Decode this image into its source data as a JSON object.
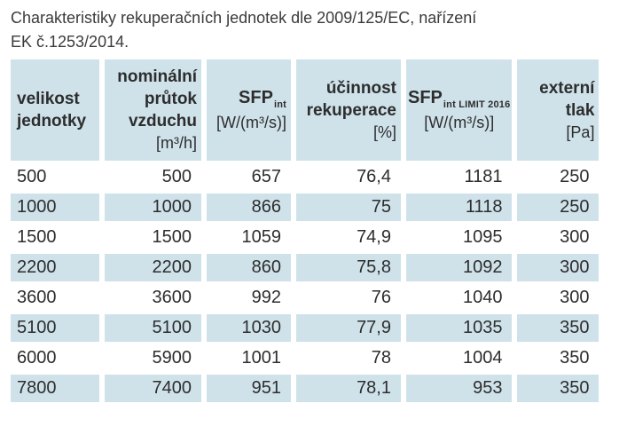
{
  "title": {
    "lines": [
      "Charakteristiky rekuperačních jednotek dle 2009/125/EC, nařízení",
      "EK č.1253/2014."
    ]
  },
  "colors": {
    "cell_bg": "#cfe2ea",
    "page_bg": "#ffffff",
    "text": "#2d2d2d"
  },
  "table": {
    "columns": [
      {
        "id": "velikost-jednotky",
        "name": "velikost jednotky",
        "lines": [
          "velikost",
          "jednotky"
        ],
        "unit": ""
      },
      {
        "id": "nominalni-prutok",
        "name": "nominální průtok vzduchu",
        "lines": [
          "nominální",
          "průtok",
          "vzduchu"
        ],
        "unit": "[m³/h]"
      },
      {
        "id": "sfp-int",
        "name": "SFP int",
        "main": "SFP",
        "sub": "int",
        "unit": "[W/(m³/s)]"
      },
      {
        "id": "ucinnost-rekuperace",
        "name": "účinnost rekuperace",
        "lines": [
          "účinnost",
          "rekuperace"
        ],
        "unit": "[%]"
      },
      {
        "id": "sfp-int-limit-2016",
        "name": "SFP int LIMIT 2016",
        "main": "SFP",
        "sub": "int LIMIT 2016",
        "unit": "[W/(m³/s)]"
      },
      {
        "id": "externi-tlak",
        "name": "externí tlak",
        "lines": [
          "externí",
          "tlak"
        ],
        "unit": "[Pa]"
      }
    ],
    "rows": [
      [
        "500",
        "500",
        "657",
        "76,4",
        "1181",
        "250"
      ],
      [
        "1000",
        "1000",
        "866",
        "75",
        "1118",
        "250"
      ],
      [
        "1500",
        "1500",
        "1059",
        "74,9",
        "1095",
        "300"
      ],
      [
        "2200",
        "2200",
        "860",
        "75,8",
        "1092",
        "300"
      ],
      [
        "3600",
        "3600",
        "992",
        "76",
        "1040",
        "300"
      ],
      [
        "5100",
        "5100",
        "1030",
        "77,9",
        "1035",
        "350"
      ],
      [
        "6000",
        "5900",
        "1001",
        "78",
        "1004",
        "350"
      ],
      [
        "7800",
        "7400",
        "951",
        "78,1",
        "953",
        "350"
      ]
    ]
  }
}
